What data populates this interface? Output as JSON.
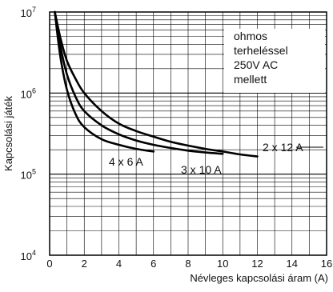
{
  "chart_data": {
    "type": "line",
    "xlabel": "Névleges kapcsolási áram (A)",
    "ylabel": "Kapcsolási játék",
    "xlim": [
      0,
      16
    ],
    "ylim": [
      10000,
      10000000
    ],
    "y_scale": "log",
    "grid": true,
    "x_ticks": [
      "0",
      "2",
      "4",
      "6",
      "8",
      "10",
      "12",
      "14",
      "16"
    ],
    "y_ticks": [
      {
        "base": "10",
        "exp": "4"
      },
      {
        "base": "10",
        "exp": "5"
      },
      {
        "base": "10",
        "exp": "6"
      },
      {
        "base": "10",
        "exp": "7"
      }
    ],
    "annotation": [
      "ohmos",
      "terheléssel",
      "250V AC",
      "mellett"
    ],
    "series": [
      {
        "name": "2 x 12 A",
        "x": [
          0.3,
          0.6,
          1,
          1.5,
          2,
          3,
          4,
          5,
          6,
          7,
          8,
          9,
          10,
          11,
          12
        ],
        "y": [
          10000000,
          5000000,
          2500000,
          1500000,
          1000000,
          600000,
          420000,
          340000,
          290000,
          250000,
          225000,
          205000,
          190000,
          175000,
          165000
        ]
      },
      {
        "name": "3 x 10 A",
        "x": [
          0.3,
          0.6,
          1,
          1.5,
          2,
          3,
          4,
          5,
          6,
          7,
          8,
          9,
          10
        ],
        "y": [
          10000000,
          4000000,
          1700000,
          900000,
          600000,
          400000,
          310000,
          260000,
          230000,
          210000,
          195000,
          185000,
          178000
        ]
      },
      {
        "name": "4 x 6 A",
        "x": [
          0.3,
          0.6,
          1,
          1.5,
          2,
          3,
          4,
          5,
          6
        ],
        "y": [
          10000000,
          3000000,
          1100000,
          550000,
          380000,
          270000,
          230000,
          205000,
          190000
        ]
      }
    ]
  }
}
